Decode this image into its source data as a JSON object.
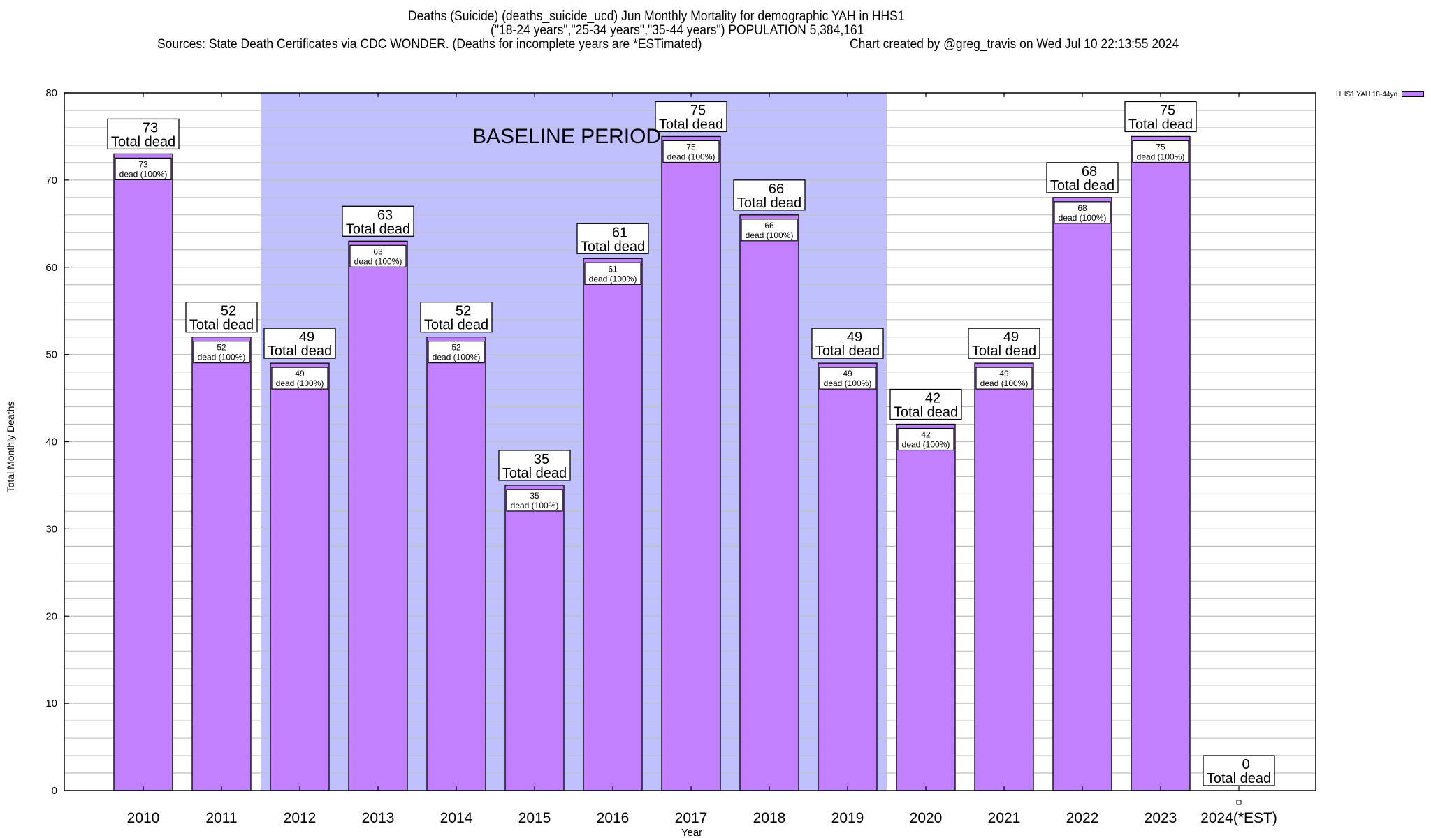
{
  "header": {
    "line1": "Deaths (Suicide) (deaths_suicide_ucd) Jun Monthly Mortality for demographic YAH in HHS1",
    "line2": "(\"18-24 years\",\"25-34 years\",\"35-44 years\") POPULATION 5,384,161",
    "line3_left": "Sources: State Death Certificates via CDC WONDER. (Deaths for incomplete years are *ESTimated)",
    "line3_right": "Chart created by @greg_travis on Wed Jul 10 22:13:55 2024"
  },
  "colors": {
    "bar": "#c080ff",
    "baseline_shade": "#c0c0ff",
    "grid": "#c0c0c0"
  },
  "chart_data": {
    "type": "bar",
    "title": "Deaths (Suicide) (deaths_suicide_ucd) Jun Monthly Mortality for demographic YAH in HHS1",
    "xlabel": "Year",
    "ylabel": "Total Monthly Deaths",
    "ylim": [
      0,
      80
    ],
    "yticks": [
      0,
      10,
      20,
      30,
      40,
      50,
      60,
      70,
      80
    ],
    "ytick_labels": [
      "0",
      "10",
      "20",
      "30",
      "40",
      "50",
      "60",
      "70",
      "80"
    ],
    "minor_grid_step": 2,
    "grid": true,
    "legend": {
      "position": "top-right",
      "entries": [
        "HHS1 YAH 18-44yo"
      ]
    },
    "categories": [
      "2010",
      "2011",
      "2012",
      "2013",
      "2014",
      "2015",
      "2016",
      "2017",
      "2018",
      "2019",
      "2020",
      "2021",
      "2022",
      "2023",
      "2024(*EST)"
    ],
    "series": [
      {
        "name": "HHS1 YAH 18-44yo",
        "values": [
          73,
          52,
          49,
          63,
          52,
          35,
          61,
          75,
          66,
          49,
          42,
          49,
          68,
          75,
          0
        ]
      }
    ],
    "total_label_suffix": "Total dead",
    "inner_label_suffix": "dead (100%)",
    "annotation": {
      "text": "BASELINE PERIOD",
      "from_category": "2012",
      "to_category": "2019"
    }
  }
}
